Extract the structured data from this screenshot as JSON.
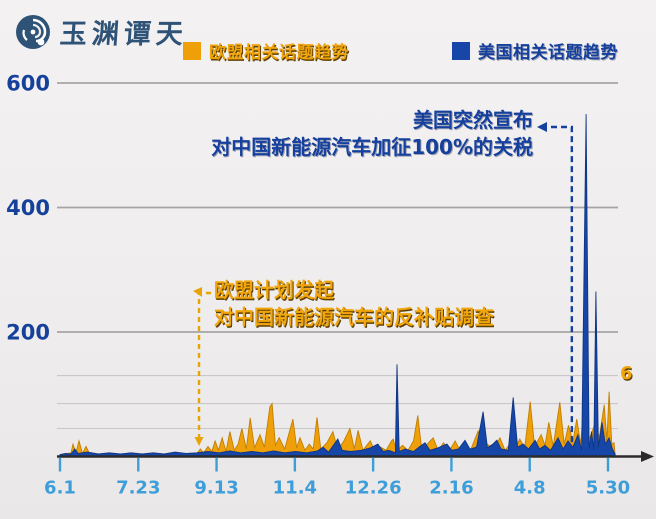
{
  "logo": {
    "title": "玉渊谭天"
  },
  "colors": {
    "eu_orange": "#efa008",
    "us_blue": "#1546a8",
    "x_label_blue": "#3e9eda",
    "y_label_blue": "#16419b",
    "grid_major": "#a6a4a4",
    "grid_minor": "#c9c7c7",
    "axis_black": "#2b2b2b",
    "background": "#efeded"
  },
  "chart_data": {
    "type": "area",
    "title": "",
    "legend_position": "top",
    "grid": "on",
    "ylim": [
      0,
      600
    ],
    "y_tick_labels": [
      "600",
      "400",
      "200"
    ],
    "y_major_gridline_values": [
      600,
      400,
      200
    ],
    "y_minor_gridline_values": [
      130,
      85,
      45
    ],
    "x_tick_labels": [
      "6.1",
      "7.23",
      "9.13",
      "11.4",
      "12.26",
      "2.16",
      "4.8",
      "5.30"
    ],
    "right_axis_label": "6",
    "annotations": [
      {
        "id": "us-tariff",
        "lines": [
          "美国突然宣布",
          "对中国新能源汽车加征100%的关税"
        ],
        "color": "#15409e",
        "event_x_frac": 0.934
      },
      {
        "id": "eu-probe",
        "lines": [
          "欧盟计划发起",
          "对中国新能源汽车的反补贴调查"
        ],
        "color": "#f0a50c",
        "event_x_frac": 0.2537
      }
    ],
    "series": [
      {
        "name": "欧盟相关话题趋势",
        "color": "#efa008",
        "stroke": "#c07f00",
        "points": [
          [
            0,
            2
          ],
          [
            0.01,
            4
          ],
          [
            0.02,
            6
          ],
          [
            0.0237,
            20
          ],
          [
            0.029,
            6
          ],
          [
            0.0347,
            25
          ],
          [
            0.041,
            5
          ],
          [
            0.0474,
            16
          ],
          [
            0.055,
            3
          ],
          [
            0.08,
            4
          ],
          [
            0.1,
            3
          ],
          [
            0.12,
            4
          ],
          [
            0.14,
            3
          ],
          [
            0.16,
            4
          ],
          [
            0.18,
            3
          ],
          [
            0.2,
            4
          ],
          [
            0.22,
            3
          ],
          [
            0.24,
            4
          ],
          [
            0.25,
            5
          ],
          [
            0.256,
            12
          ],
          [
            0.262,
            6
          ],
          [
            0.27,
            16
          ],
          [
            0.277,
            8
          ],
          [
            0.283,
            25
          ],
          [
            0.289,
            10
          ],
          [
            0.296,
            30
          ],
          [
            0.303,
            8
          ],
          [
            0.31,
            40
          ],
          [
            0.318,
            10
          ],
          [
            0.325,
            20
          ],
          [
            0.332,
            45
          ],
          [
            0.34,
            12
          ],
          [
            0.347,
            62
          ],
          [
            0.355,
            14
          ],
          [
            0.365,
            35
          ],
          [
            0.373,
            15
          ],
          [
            0.383,
            80
          ],
          [
            0.387,
            85
          ],
          [
            0.393,
            18
          ],
          [
            0.4,
            30
          ],
          [
            0.41,
            12
          ],
          [
            0.425,
            60
          ],
          [
            0.432,
            14
          ],
          [
            0.438,
            30
          ],
          [
            0.447,
            10
          ],
          [
            0.455,
            20
          ],
          [
            0.462,
            12
          ],
          [
            0.469,
            63
          ],
          [
            0.476,
            12
          ],
          [
            0.487,
            22
          ],
          [
            0.498,
            40
          ],
          [
            0.507,
            10
          ],
          [
            0.518,
            25
          ],
          [
            0.529,
            45
          ],
          [
            0.537,
            12
          ],
          [
            0.544,
            42
          ],
          [
            0.553,
            10
          ],
          [
            0.566,
            25
          ],
          [
            0.575,
            8
          ],
          [
            0.585,
            15
          ],
          [
            0.595,
            10
          ],
          [
            0.605,
            25
          ],
          [
            0.608,
            28
          ],
          [
            0.614,
            8
          ],
          [
            0.625,
            18
          ],
          [
            0.635,
            10
          ],
          [
            0.645,
            25
          ],
          [
            0.653,
            66
          ],
          [
            0.66,
            12
          ],
          [
            0.67,
            20
          ],
          [
            0.681,
            30
          ],
          [
            0.69,
            10
          ],
          [
            0.7,
            22
          ],
          [
            0.71,
            8
          ],
          [
            0.721,
            25
          ],
          [
            0.73,
            10
          ],
          [
            0.74,
            15
          ],
          [
            0.75,
            12
          ],
          [
            0.763,
            41
          ],
          [
            0.771,
            10
          ],
          [
            0.78,
            20
          ],
          [
            0.79,
            12
          ],
          [
            0.803,
            30
          ],
          [
            0.812,
            10
          ],
          [
            0.821,
            20
          ],
          [
            0.83,
            12
          ],
          [
            0.839,
            28
          ],
          [
            0.848,
            14
          ],
          [
            0.858,
            88
          ],
          [
            0.866,
            16
          ],
          [
            0.878,
            35
          ],
          [
            0.885,
            18
          ],
          [
            0.892,
            55
          ],
          [
            0.9,
            16
          ],
          [
            0.912,
            87
          ],
          [
            0.92,
            20
          ],
          [
            0.928,
            50
          ],
          [
            0.936,
            24
          ],
          [
            0.943,
            60
          ],
          [
            0.95,
            20
          ],
          [
            0.958,
            104
          ],
          [
            0.9645,
            25
          ],
          [
            0.971,
            40
          ],
          [
            0.977,
            55
          ],
          [
            0.984,
            30
          ],
          [
            0.993,
            83
          ],
          [
            0.998,
            25
          ],
          [
            1.002,
            104
          ],
          [
            1.007,
            20
          ],
          [
            1.011,
            22
          ],
          [
            1.013,
            3
          ]
        ]
      },
      {
        "name": "美国相关话题趋势",
        "color": "#1546a8",
        "stroke": "#0f3585",
        "points": [
          [
            0,
            3
          ],
          [
            0.01,
            5
          ],
          [
            0.02,
            4
          ],
          [
            0.027,
            12
          ],
          [
            0.033,
            5
          ],
          [
            0.05,
            7
          ],
          [
            0.07,
            4
          ],
          [
            0.09,
            6
          ],
          [
            0.11,
            4
          ],
          [
            0.13,
            6
          ],
          [
            0.15,
            4
          ],
          [
            0.17,
            6
          ],
          [
            0.19,
            4
          ],
          [
            0.21,
            7
          ],
          [
            0.23,
            5
          ],
          [
            0.25,
            6
          ],
          [
            0.27,
            8
          ],
          [
            0.29,
            6
          ],
          [
            0.31,
            9
          ],
          [
            0.33,
            6
          ],
          [
            0.35,
            8
          ],
          [
            0.37,
            6
          ],
          [
            0.39,
            9
          ],
          [
            0.41,
            6
          ],
          [
            0.43,
            8
          ],
          [
            0.45,
            6
          ],
          [
            0.47,
            9
          ],
          [
            0.48,
            15
          ],
          [
            0.49,
            7
          ],
          [
            0.507,
            28
          ],
          [
            0.515,
            10
          ],
          [
            0.53,
            8
          ],
          [
            0.55,
            10
          ],
          [
            0.567,
            14
          ],
          [
            0.58,
            20
          ],
          [
            0.59,
            8
          ],
          [
            0.6,
            10
          ],
          [
            0.612,
            6
          ],
          [
            0.615,
            148
          ],
          [
            0.619,
            8
          ],
          [
            0.63,
            12
          ],
          [
            0.645,
            8
          ],
          [
            0.655,
            15
          ],
          [
            0.666,
            22
          ],
          [
            0.675,
            10
          ],
          [
            0.69,
            14
          ],
          [
            0.706,
            20
          ],
          [
            0.715,
            10
          ],
          [
            0.727,
            12
          ],
          [
            0.739,
            26
          ],
          [
            0.748,
            12
          ],
          [
            0.76,
            15
          ],
          [
            0.772,
            72
          ],
          [
            0.78,
            14
          ],
          [
            0.79,
            20
          ],
          [
            0.797,
            26
          ],
          [
            0.805,
            12
          ],
          [
            0.818,
            10
          ],
          [
            0.827,
            95
          ],
          [
            0.835,
            15
          ],
          [
            0.845,
            20
          ],
          [
            0.855,
            12
          ],
          [
            0.867,
            26
          ],
          [
            0.875,
            12
          ],
          [
            0.885,
            18
          ],
          [
            0.895,
            10
          ],
          [
            0.909,
            30
          ],
          [
            0.918,
            12
          ],
          [
            0.927,
            25
          ],
          [
            0.936,
            15
          ],
          [
            0.945,
            35
          ],
          [
            0.952,
            10
          ],
          [
            0.96,
            550
          ],
          [
            0.9655,
            12
          ],
          [
            0.97,
            40
          ],
          [
            0.974,
            10
          ],
          [
            0.978,
            265
          ],
          [
            0.9825,
            15
          ],
          [
            0.989,
            55
          ],
          [
            0.995,
            20
          ],
          [
            1.002,
            30
          ],
          [
            1.008,
            12
          ],
          [
            1.013,
            4
          ]
        ]
      }
    ]
  }
}
